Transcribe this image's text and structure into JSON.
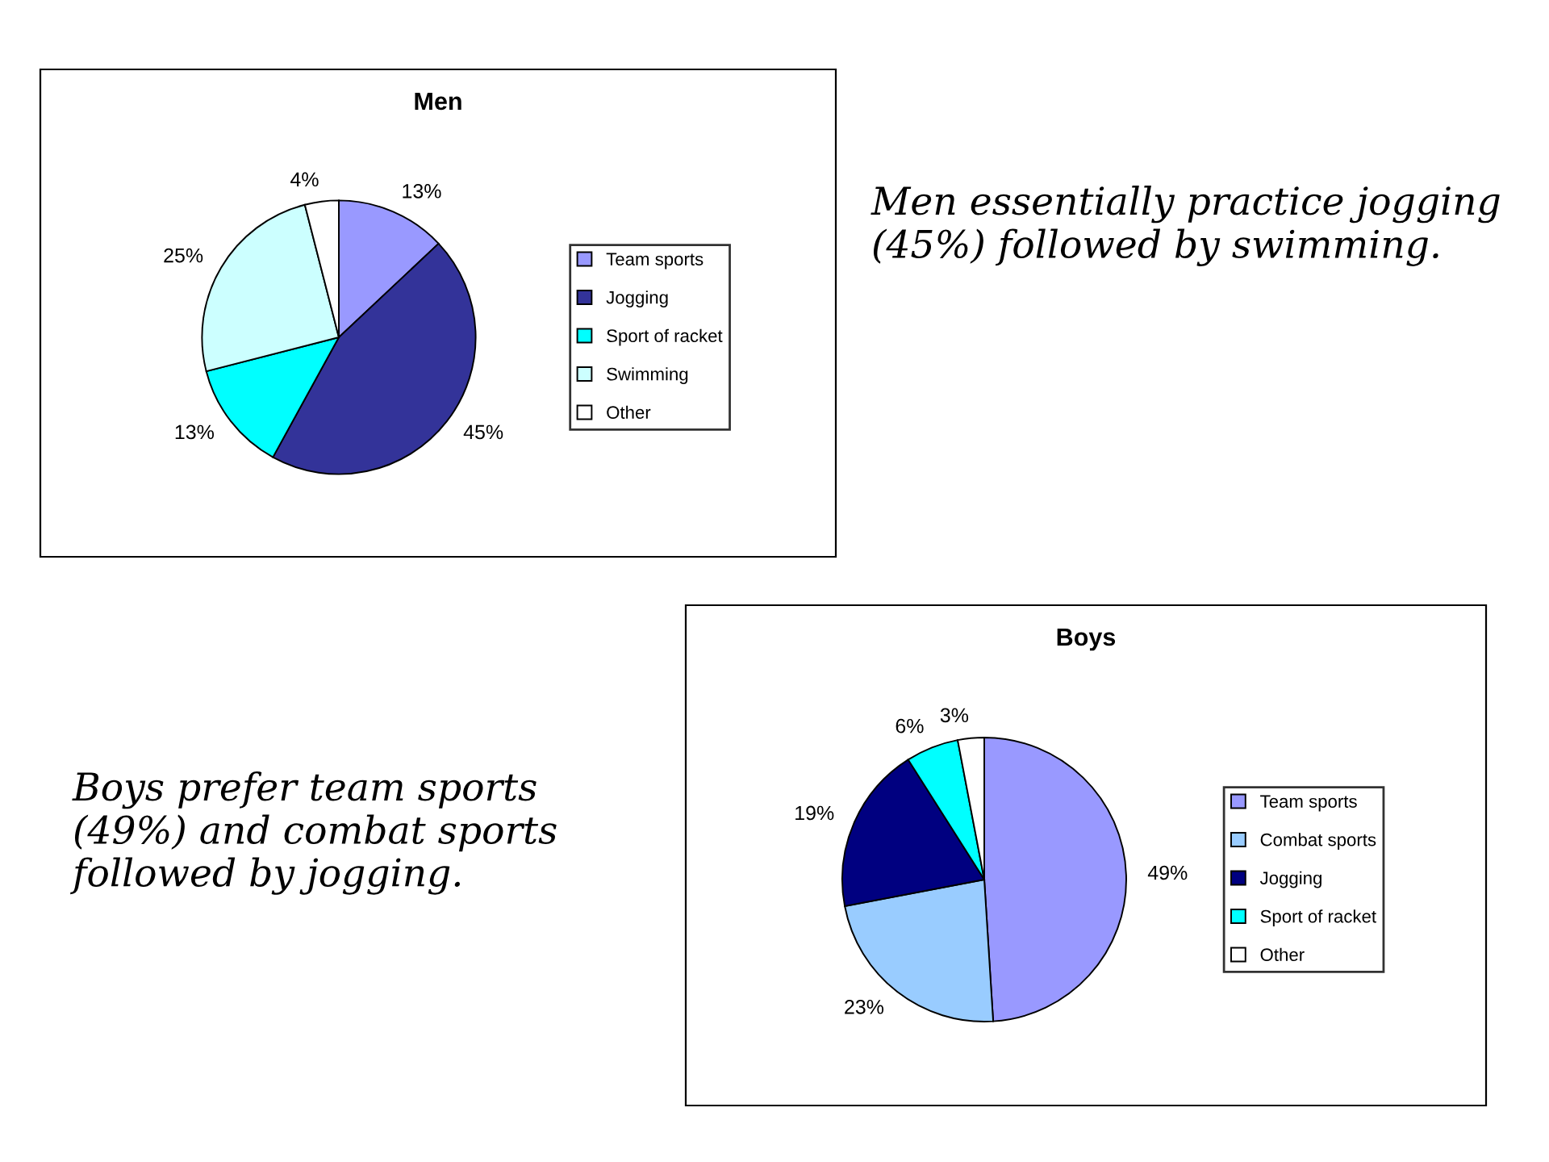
{
  "chart_data": [
    {
      "type": "pie",
      "title": "Men",
      "categories": [
        "Team sports",
        "Jogging",
        "Sport of racket",
        "Swimming",
        "Other"
      ],
      "values": [
        13,
        45,
        13,
        25,
        4
      ],
      "value_labels": [
        "13%",
        "45%",
        "13%",
        "25%",
        "4%"
      ],
      "colors": [
        "#9999ff",
        "#333399",
        "#00ffff",
        "#ccffff",
        "#ffffff"
      ],
      "legend": "right",
      "annotations": [
        "Men essentially practice jogging (45%) followed by swimming."
      ]
    },
    {
      "type": "pie",
      "title": "Boys",
      "categories": [
        "Team sports",
        "Combat sports",
        "Jogging",
        "Sport of racket",
        "Other"
      ],
      "values": [
        49,
        23,
        19,
        6,
        3
      ],
      "value_labels": [
        "49%",
        "23%",
        "19%",
        "6%",
        "3%"
      ],
      "colors": [
        "#9999ff",
        "#99ccff",
        "#000080",
        "#00ffff",
        "#ffffff"
      ],
      "legend": "right",
      "annotations": [
        "Boys prefer team sports (49%) and combat sports followed by jogging."
      ]
    }
  ]
}
